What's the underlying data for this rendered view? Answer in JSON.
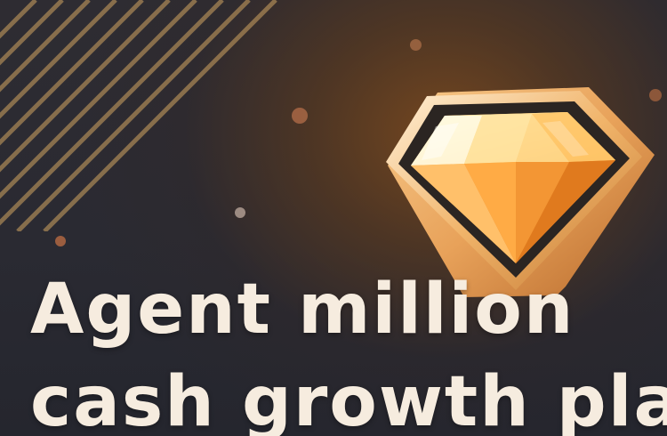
{
  "banner": {
    "title_lines": [
      "Agent million",
      "cash growth plan"
    ],
    "icon": "diamond-icon",
    "colors": {
      "background": "#2a2b33",
      "glow": "#7a4a22",
      "stripes": "#b8925a",
      "gem_light": "#ffd27a",
      "gem_dark": "#e07a1e",
      "frame": "#f0b46a",
      "text": "#f6ecdf"
    }
  }
}
